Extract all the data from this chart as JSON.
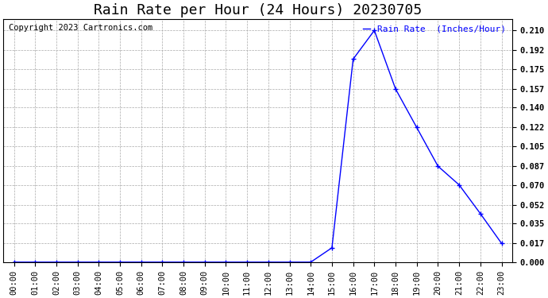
{
  "title": "Rain Rate per Hour (24 Hours) 20230705",
  "copyright": "Copyright 2023 Cartronics.com",
  "legend_label": "Rain Rate  (Inches/Hour)",
  "x_labels": [
    "00:00",
    "01:00",
    "02:00",
    "03:00",
    "04:00",
    "05:00",
    "06:00",
    "07:00",
    "08:00",
    "09:00",
    "10:00",
    "11:00",
    "12:00",
    "13:00",
    "14:00",
    "15:00",
    "16:00",
    "17:00",
    "18:00",
    "19:00",
    "20:00",
    "21:00",
    "22:00",
    "23:00"
  ],
  "y_values": [
    0.0,
    0.0,
    0.0,
    0.0,
    0.0,
    0.0,
    0.0,
    0.0,
    0.0,
    0.0,
    0.0,
    0.0,
    0.0,
    0.0,
    0.0,
    0.013,
    0.184,
    0.21,
    0.157,
    0.122,
    0.087,
    0.07,
    0.044,
    0.017
  ],
  "yticks": [
    0.0,
    0.017,
    0.035,
    0.052,
    0.07,
    0.087,
    0.105,
    0.122,
    0.14,
    0.157,
    0.175,
    0.192,
    0.21
  ],
  "ylim": [
    0.0,
    0.2205
  ],
  "xlim": [
    -0.5,
    23.5
  ],
  "line_color": "blue",
  "marker": "+",
  "grid_color": "#aaaaaa",
  "bg_color": "#ffffff",
  "title_fontsize": 13,
  "legend_fontsize": 8,
  "tick_fontsize": 7.5,
  "copyright_fontsize": 7.5
}
